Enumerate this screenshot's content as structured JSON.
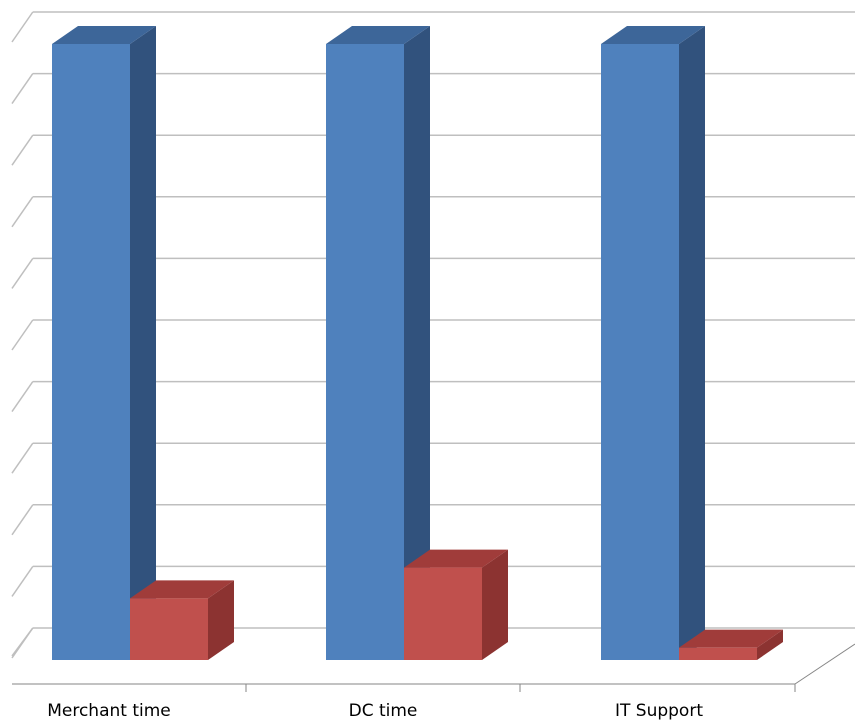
{
  "chart_data": {
    "type": "bar",
    "three_d": true,
    "categories": [
      "Merchant time",
      "DC time",
      "IT Support"
    ],
    "series": [
      {
        "values": [
          100,
          100,
          100
        ]
      },
      {
        "values": [
          10,
          15,
          2
        ]
      }
    ],
    "ylim": [
      0,
      100
    ],
    "grid": true,
    "legend": "none",
    "title": "",
    "xlabel": "",
    "ylabel": ""
  },
  "colors": {
    "series_front": [
      "#4F81BD",
      "#C0504D"
    ],
    "series_side": [
      "#31527D",
      "#8C3331"
    ],
    "series_top": [
      "#3D6699",
      "#A03C3A"
    ],
    "grid": "#BFBFBF",
    "axis": "#868686"
  }
}
